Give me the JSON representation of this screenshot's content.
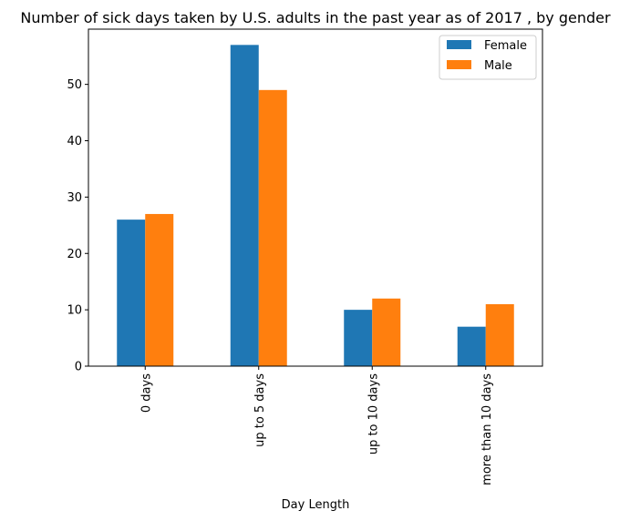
{
  "chart_data": {
    "type": "bar",
    "title": "Number of sick days taken by U.S. adults in the past year as of 2017 , by gender",
    "xlabel": "Day Length",
    "ylabel": "",
    "categories": [
      "0 days",
      "up to 5 days",
      "up to 10 days",
      "more than 10 days"
    ],
    "series": [
      {
        "name": "Female",
        "values": [
          26,
          57,
          10,
          7
        ],
        "color": "#1f77b4"
      },
      {
        "name": "Male",
        "values": [
          27,
          49,
          12,
          11
        ],
        "color": "#ff7f0e"
      }
    ],
    "ylim": [
      0,
      59.8
    ],
    "yticks": [
      0,
      10,
      20,
      30,
      40,
      50
    ],
    "grid": false,
    "legend_position": "top-right"
  }
}
